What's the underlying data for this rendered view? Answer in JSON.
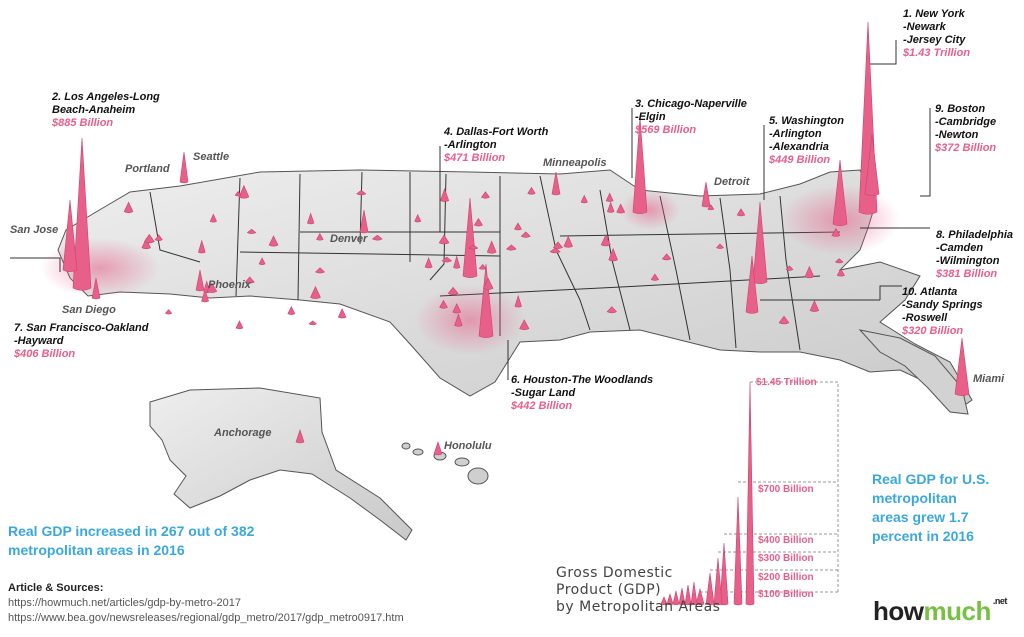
{
  "rankings": [
    {
      "lines": [
        "1. New York",
        "-Newark",
        "-Jersey City"
      ],
      "value": "$1.43 Trillion"
    },
    {
      "lines": [
        "2. Los Angeles-Long",
        "Beach-Anaheim"
      ],
      "value": "$885 Billion"
    },
    {
      "lines": [
        "3. Chicago-Naperville",
        "-Elgin"
      ],
      "value": "$569 Billion"
    },
    {
      "lines": [
        "4. Dallas-Fort Worth",
        "-Arlington"
      ],
      "value": "$471 Billion"
    },
    {
      "lines": [
        "5. Washington",
        "-Arlington",
        "-Alexandria"
      ],
      "value": "$449 Billion"
    },
    {
      "lines": [
        "6. Houston-The Woodlands",
        "-Sugar Land"
      ],
      "value": "$442 Billion"
    },
    {
      "lines": [
        "7. San Francisco-Oakland",
        "-Hayward"
      ],
      "value": "$406 Billion"
    },
    {
      "lines": [
        "8. Philadelphia",
        "-Camden",
        "-Wilmington"
      ],
      "value": "$381 Billion"
    },
    {
      "lines": [
        "9. Boston",
        "-Cambridge",
        "-Newton"
      ],
      "value": "$372 Billion"
    },
    {
      "lines": [
        "10. Atlanta",
        "-Sandy Springs",
        "-Roswell"
      ],
      "value": "$320 Billion"
    }
  ],
  "city_labels": [
    "Seattle",
    "Portland",
    "San Jose",
    "San Diego",
    "Phoenix",
    "Denver",
    "Minneapolis",
    "Detroit",
    "Miami",
    "Anchorage",
    "Honolulu"
  ],
  "notes": {
    "left": [
      "Real GDP increased in 267 out of 382",
      "metropolitan areas in 2016"
    ],
    "right": [
      "Real GDP for U.S.",
      "metropolitan",
      "areas grew 1.7",
      "percent in 2016"
    ]
  },
  "sources": {
    "title": "Article & Sources:",
    "links": [
      "https://howmuch.net/articles/gdp-by-metro-2017",
      "https://www.bea.gov/newsreleases/regional/gdp_metro/2017/gdp_metro0917.htm"
    ]
  },
  "legend": {
    "title": [
      "Gross Domestic",
      "Product (GDP)",
      "by Metropolitan Areas"
    ],
    "ticks": [
      {
        "label": "$1.45 Trillion",
        "value": 1450
      },
      {
        "label": "$700 Billion",
        "value": 700
      },
      {
        "label": "$400 Billion",
        "value": 400
      },
      {
        "label": "$300 Billion",
        "value": 300
      },
      {
        "label": "$200 Billion",
        "value": 200
      },
      {
        "label": "$100 Billion",
        "value": 100
      }
    ]
  },
  "brand": {
    "how": "how",
    "much": "much",
    "suffix": ".net"
  },
  "colors": {
    "accent": "#e8608a",
    "note": "#3aa8dd",
    "brand_green": "#77c043",
    "land": "#d9d9d9"
  }
}
